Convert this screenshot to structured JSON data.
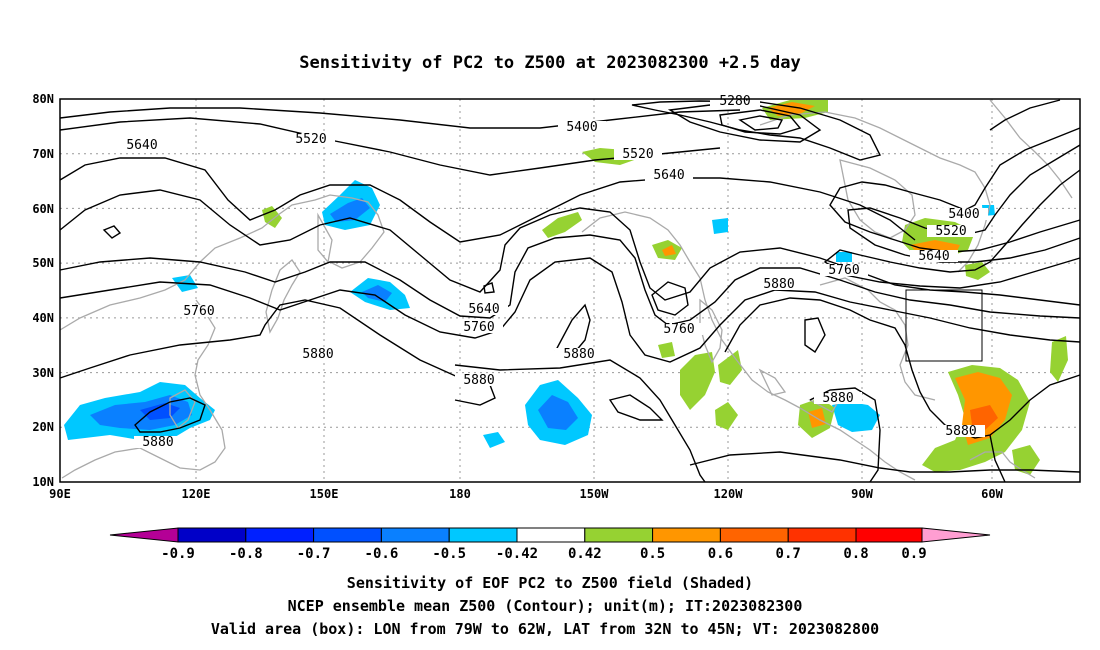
{
  "title": "Sensitivity of PC2 to Z500 at 2023082300 +2.5 day",
  "lat_labels": [
    "80N",
    "70N",
    "60N",
    "50N",
    "40N",
    "30N",
    "20N",
    "10N"
  ],
  "lon_labels": [
    "90E",
    "120E",
    "150E",
    "180",
    "150W",
    "120W",
    "90W",
    "60W"
  ],
  "contour_labels": [
    {
      "text": "5280"
    },
    {
      "text": "5400"
    },
    {
      "text": "5520"
    },
    {
      "text": "5520"
    },
    {
      "text": "5640"
    },
    {
      "text": "5640"
    },
    {
      "text": "5400"
    },
    {
      "text": "5520"
    },
    {
      "text": "5640"
    },
    {
      "text": "5760"
    },
    {
      "text": "5880"
    },
    {
      "text": "5640"
    },
    {
      "text": "5760"
    },
    {
      "text": "5760"
    },
    {
      "text": "5760"
    },
    {
      "text": "5880"
    },
    {
      "text": "5880"
    },
    {
      "text": "5880"
    },
    {
      "text": "5880"
    },
    {
      "text": "5880"
    },
    {
      "text": "5880"
    }
  ],
  "colorbar": {
    "colors": [
      "#b40096",
      "#0000c8",
      "#0020ff",
      "#0050ff",
      "#0a80ff",
      "#00c8ff",
      "#ffffff",
      "#96d232",
      "#ff9600",
      "#ff6400",
      "#ff3200",
      "#ff0000",
      "#ff9ed2"
    ],
    "labels": [
      "-0.9",
      "-0.8",
      "-0.7",
      "-0.6",
      "-0.5",
      "-0.42",
      "0.42",
      "0.5",
      "0.6",
      "0.7",
      "0.8",
      "0.9"
    ]
  },
  "caption": [
    "Sensitivity of EOF PC2 to Z500 field (Shaded)",
    "NCEP ensemble mean Z500 (Contour); unit(m); IT:2023082300",
    "Valid area (box): LON from 79W to 62W, LAT from 32N to 45N; VT: 2023082800"
  ]
}
